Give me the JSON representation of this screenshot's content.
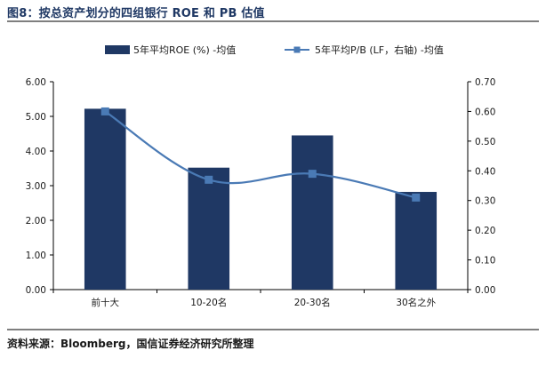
{
  "figure": {
    "title": "图8：按总资产划分的四组银行 ROE 和 PB 估值",
    "source": "资料来源：Bloomberg，国信证券经济研究所整理"
  },
  "chart_data": {
    "type": "bar",
    "categories": [
      "前十大",
      "10-20名",
      "20-30名",
      "30名之外"
    ],
    "series": [
      {
        "name": "5年平均ROE (%) -均值",
        "type": "bar",
        "axis": "left",
        "color": "#1f3864",
        "values": [
          5.22,
          3.52,
          4.45,
          2.82
        ]
      },
      {
        "name": "5年平均P/B (LF，右轴) -均值",
        "type": "line",
        "axis": "right",
        "color": "#4a7ab5",
        "values": [
          0.6,
          0.37,
          0.39,
          0.31
        ]
      }
    ],
    "y_left": {
      "lim": [
        0,
        6
      ],
      "ticks": [
        "0.00",
        "1.00",
        "2.00",
        "3.00",
        "4.00",
        "5.00",
        "6.00"
      ]
    },
    "y_right": {
      "lim": [
        0,
        0.7
      ],
      "ticks": [
        "0.00",
        "0.10",
        "0.20",
        "0.30",
        "0.40",
        "0.50",
        "0.60",
        "0.70"
      ]
    },
    "grid": false,
    "legend_position": "top"
  }
}
